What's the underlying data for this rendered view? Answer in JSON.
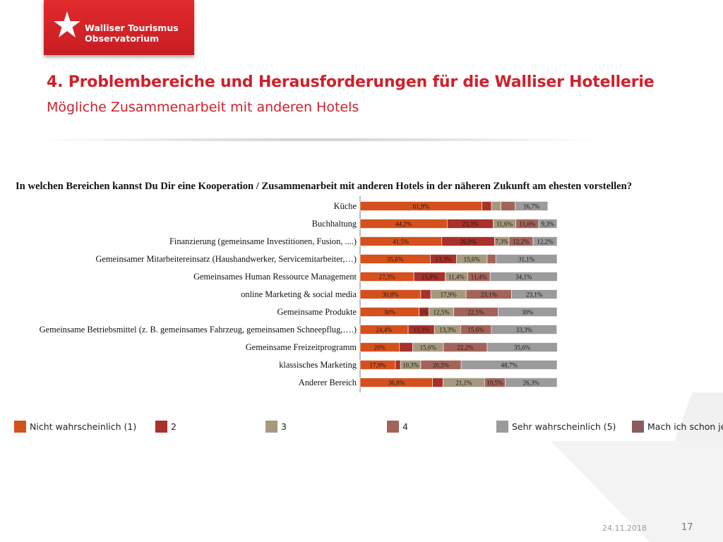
{
  "brand": {
    "line1": "Walliser Tourismus",
    "line2": "Observatorium",
    "color": "#d0202b"
  },
  "header": {
    "title": "4. Problembereiche und Herausforderungen für die Walliser Hotellerie",
    "subtitle": "Mögliche Zusammenarbeit mit anderen Hotels"
  },
  "footer": {
    "date": "24.11.2018",
    "page": "17"
  },
  "chart_data": {
    "type": "bar",
    "orientation": "horizontal",
    "stacked": true,
    "title": "In welchen Bereichen kannst Du Dir eine Kooperation / Zusammenarbeit mit anderen Hotels in der näheren Zukunft am ehesten vorstellen?",
    "legend_position": "bottom",
    "categories": [
      "Küche",
      "Buchhaltung",
      "Finanzierung (gemeinsame Investitionen, Fusion, ....)",
      "Gemeinsamer Mitarbeitereinsatz (Haushandwerker, Servicemitarbeiter,…)",
      "Gemeinsames Human Ressource Management",
      "online Marketing & social media",
      "Gemeinsame Produkte",
      "Gemeinsame Betriebsmittel (z. B. gemeinsames Fahrzeug, gemeinsamen Schneepflug,….)",
      "Gemeinsame Freizeitprogramm",
      "klassisches Marketing",
      "Anderer Bereich"
    ],
    "series": [
      {
        "name": "Nicht wahrscheinlich (1)",
        "color": "#d4511e",
        "values": [
          61.9,
          44.2,
          41.5,
          35.6,
          27.3,
          30.8,
          30,
          24.4,
          20,
          17.9,
          36.8
        ],
        "labels": [
          "61,9%",
          "44,2%",
          "41,5%",
          "35,6%",
          "27,3%",
          "30,8%",
          "30%",
          "24,4%",
          "20%",
          "17,9%",
          "36,8%"
        ]
      },
      {
        "name": "2",
        "color": "#a8312a",
        "values": [
          4.8,
          23.3,
          26.8,
          13.3,
          15.9,
          5.1,
          5,
          13.3,
          6.7,
          2.6,
          5.3
        ],
        "labels": [
          "",
          "23,3%",
          "26,8%",
          "13,3%",
          "15,9%",
          "",
          "5%",
          "13,3%",
          "",
          "",
          ""
        ]
      },
      {
        "name": "3",
        "color": "#a59a7e",
        "values": [
          4.8,
          11.6,
          7.3,
          15.6,
          11.4,
          17.9,
          12.5,
          13.3,
          15.6,
          10.3,
          21.1
        ],
        "labels": [
          "",
          "11,6%",
          "7,3%",
          "15,6%",
          "11,4%",
          "17,9%",
          "12,5%",
          "13,3%",
          "15,6%",
          "10,3%",
          "21,1%"
        ]
      },
      {
        "name": "4",
        "color": "#a2645a",
        "values": [
          7.1,
          11.6,
          12.2,
          4.4,
          11.4,
          23.1,
          22.5,
          15.6,
          22.2,
          20.5,
          10.5
        ],
        "labels": [
          "",
          "11,6%",
          "12,2%",
          "",
          "11,4%",
          "23,1%",
          "22,5%",
          "15,6%",
          "22,2%",
          "20,5%",
          "10,5%"
        ]
      },
      {
        "name": "Sehr wahrscheinlich (5)",
        "color": "#9d9a9c",
        "values": [
          16.7,
          9.3,
          12.2,
          31.1,
          34.1,
          23.1,
          30,
          33.3,
          35.6,
          48.7,
          26.3
        ],
        "labels": [
          "16,7%",
          "9,3%",
          "12,2%",
          "31,1%",
          "34,1%",
          "23,1%",
          "30%",
          "33,3%",
          "35,6%",
          "48,7%",
          "26,3%"
        ]
      },
      {
        "name": "Mach ich schon jetzt",
        "color": "#8a5c5e",
        "values": [
          0,
          0,
          0,
          0,
          0,
          0,
          0,
          0,
          0,
          0,
          0
        ],
        "labels": [
          "",
          "",
          "",
          "",
          "",
          "",
          "",
          "",
          "",
          "",
          ""
        ]
      }
    ],
    "xlim": [
      0,
      100
    ]
  }
}
